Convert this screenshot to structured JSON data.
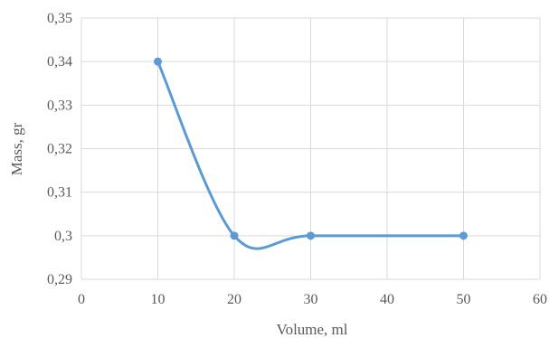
{
  "chart_data": {
    "type": "scatter",
    "smooth_line": true,
    "xlabel": "Volume, ml",
    "ylabel": "Mass, gr",
    "xlim": [
      0,
      60
    ],
    "ylim": [
      0.29,
      0.35
    ],
    "x_ticks": [
      "0",
      "10",
      "20",
      "30",
      "40",
      "50",
      "60"
    ],
    "y_ticks": [
      "0,29",
      "0,3",
      "0,31",
      "0,32",
      "0,33",
      "0,34",
      "0,35"
    ],
    "grid": true,
    "legend": "none",
    "series": [
      {
        "color": "#5b9bd5",
        "points": [
          {
            "x": 10,
            "y": 0.34
          },
          {
            "x": 20,
            "y": 0.3
          },
          {
            "x": 30,
            "y": 0.3
          },
          {
            "x": 50,
            "y": 0.3
          }
        ]
      }
    ]
  }
}
